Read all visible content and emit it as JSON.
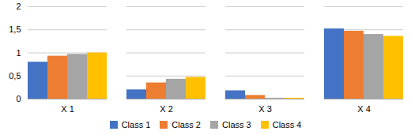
{
  "chart_data": {
    "type": "bar",
    "categories": [
      "X 1",
      "X 2",
      "X 3",
      "X 4"
    ],
    "series": [
      {
        "name": "Class 1",
        "color": "#4472C4",
        "values": [
          0.8,
          0.2,
          0.18,
          1.52
        ]
      },
      {
        "name": "Class 2",
        "color": "#ED7D31",
        "values": [
          0.93,
          0.35,
          0.08,
          1.47
        ]
      },
      {
        "name": "Class 3",
        "color": "#A5A5A5",
        "values": [
          0.97,
          0.43,
          0.02,
          1.4
        ]
      },
      {
        "name": "Class 4",
        "color": "#FFC000",
        "values": [
          1.0,
          0.47,
          0.02,
          1.36
        ]
      }
    ],
    "ylim": [
      0,
      2
    ],
    "yticks": [
      0,
      {
        "value": 0.5,
        "label": "0,5"
      },
      1,
      {
        "value": 1.5,
        "label": "1,5"
      },
      2
    ],
    "grid": true,
    "legend": "bottom"
  }
}
